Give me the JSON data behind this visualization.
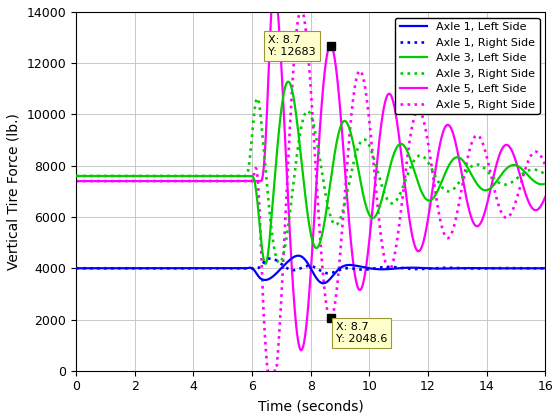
{
  "title": "",
  "xlabel": "Time (seconds)",
  "ylabel": "Vertical Tire Force (lb.)",
  "xlim": [
    0,
    16
  ],
  "ylim": [
    0,
    14000
  ],
  "xticks": [
    0,
    2,
    4,
    6,
    8,
    10,
    12,
    14,
    16
  ],
  "yticks": [
    0,
    2000,
    4000,
    6000,
    8000,
    10000,
    12000,
    14000
  ],
  "legend_entries": [
    "Axle 1, Left Side",
    "Axle 1, Right Side",
    "Axle 3, Left Side",
    "Axle 3, Right Side",
    "Axle 5, Left Side",
    "Axle 5, Right Side"
  ],
  "colors": {
    "axle1": "#0000ff",
    "axle3": "#00cc00",
    "axle5": "#ff00ff"
  },
  "axle1_steady": 4000,
  "axle3_steady": 7600,
  "axle5_steady": 7400,
  "figsize": [
    5.6,
    4.2
  ],
  "dpi": 100,
  "background_color": "#ffffff",
  "grid_color": "#c0c0c0"
}
